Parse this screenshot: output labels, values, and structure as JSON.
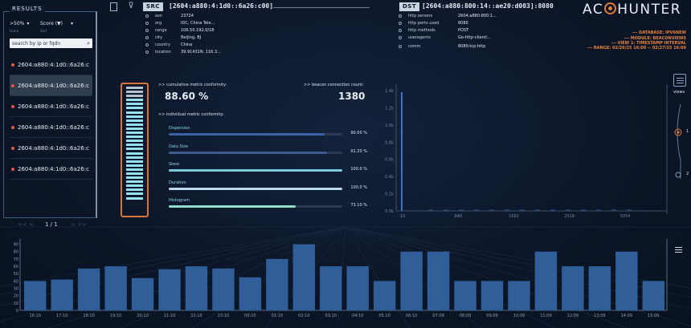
{
  "results": {
    "title": "RESULTS",
    "filter1": {
      "label": ">50%",
      "sub": "Score"
    },
    "filter2": {
      "label": "Score (▼)",
      "sub": "Sort"
    },
    "search_placeholder": "search by ip or fqdn",
    "items": [
      {
        "label": "2604:a880:4:1d0::6a26:c"
      },
      {
        "label": "2604:a880:4:1d0::6a26:c"
      },
      {
        "label": "2604:a880:4:1d0::6a26:c"
      },
      {
        "label": "2604:a880:4:1d0::6a26:c"
      },
      {
        "label": "2604:a880:4:1d0::6a26:c"
      },
      {
        "label": "2604:a880:4:1d0::6a26:c"
      }
    ],
    "page": "1 / 1"
  },
  "src": {
    "tag": "SRC",
    "title": "2604:a880:4:1d0::6a26:c00",
    "fields": [
      {
        "k": "asn",
        "v": "23724"
      },
      {
        "k": "org",
        "v": "IDC, China Tele..."
      },
      {
        "k": "range",
        "v": "106.50.192.0/18"
      },
      {
        "k": "city",
        "v": "Beijing, BJ"
      },
      {
        "k": "country",
        "v": "China"
      },
      {
        "k": "location",
        "v": "39.91431N, 116.3..."
      }
    ]
  },
  "dst": {
    "tag": "DST",
    "title": "[2604:a880:800:14::ae20:d003]:8080",
    "fields": [
      {
        "k": "http servers",
        "v": "2604:a880:800:1..."
      },
      {
        "k": "http ports used",
        "v": "8080"
      },
      {
        "k": "http methods",
        "v": "POST"
      },
      {
        "k": "useragents",
        "v": "Go-http-client/..."
      },
      {
        "k": "comm",
        "v": "8080:tcp:http"
      }
    ]
  },
  "logo": {
    "left": "AC",
    "right": "HUNTER"
  },
  "meta": {
    "database": "--- DATABASE: IPV6NEW",
    "module": "--- MODULE: BEACONVIEWS",
    "view": "--- VIEW 1: TIMESTAMP INTERVAL",
    "range": "--- RANGE: 02/26/25 16:00 -- 02/27/25 16:09"
  },
  "gauge": {
    "value": 0.886,
    "segments": 28
  },
  "metrics": {
    "cumulative_label": ">> cumulative metric conformity:",
    "cumulative_value": "88.60 %",
    "beacon_label": ">> beacon connection count:",
    "beacon_value": "1380",
    "individual_label": ">> individual metric conformity:",
    "items": [
      {
        "name": "Dispersion",
        "pct_text": "90.00 %",
        "value": 0.9,
        "color": "#3b63a8"
      },
      {
        "name": "Data Size",
        "pct_text": "91.20 %",
        "value": 0.912,
        "color": "#3f5a90"
      },
      {
        "name": "Skew",
        "pct_text": "100.0 %",
        "value": 1.0,
        "color": "#7cc8dc"
      },
      {
        "name": "Duration",
        "pct_text": "100.0 %",
        "value": 1.0,
        "color": "#b8d8ee"
      },
      {
        "name": "Histogram",
        "pct_text": "73.10 %",
        "value": 0.731,
        "color": "#92dccc"
      }
    ]
  },
  "side": {
    "views": "views",
    "opt1": "1",
    "opt2": "2"
  },
  "mini_chart": {
    "yticks": [
      "1.4k",
      "1.2k",
      "1.0k",
      "0.8k",
      "0.6k",
      "0.4k",
      "0.2k",
      "0.0k"
    ],
    "xticks": [
      "10",
      "846",
      "1682",
      "2518",
      "3354"
    ],
    "spike": 1380,
    "ymax": 1400
  },
  "chart_data": {
    "type": "bar",
    "categories": [
      "16:10",
      "17:10",
      "18:10",
      "19:10",
      "20:10",
      "21:10",
      "22:10",
      "23:10",
      "00:10",
      "01:10",
      "02:10",
      "03:10",
      "04:10",
      "05:10",
      "06:10",
      "07:09",
      "08:09",
      "09:09",
      "10:09",
      "11:09",
      "12:09",
      "13:09",
      "14:09",
      "15:09"
    ],
    "values": [
      40,
      42,
      57,
      60,
      44,
      56,
      60,
      57,
      45,
      70,
      90,
      60,
      60,
      40,
      80,
      80,
      40,
      40,
      40,
      80,
      60,
      60,
      80,
      40
    ],
    "yticks": [
      0,
      10,
      20,
      30,
      40,
      50,
      60,
      70,
      80,
      90
    ],
    "ylim": [
      0,
      95
    ],
    "color": "#2f5e99"
  }
}
